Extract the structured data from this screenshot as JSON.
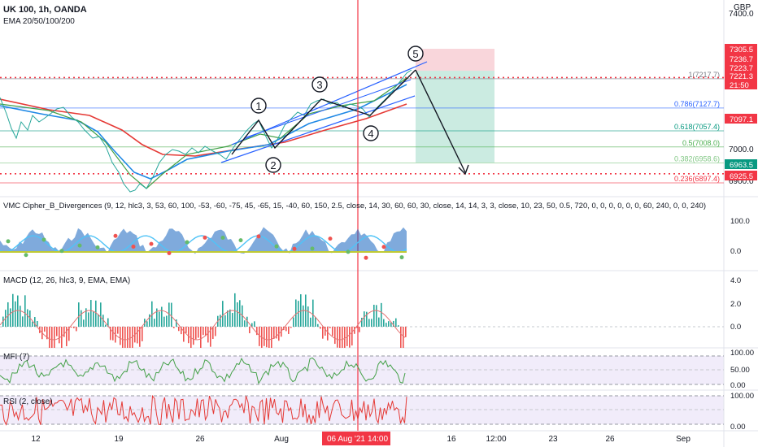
{
  "header": {
    "symbol_line": "UK 100, 1h, OANDA",
    "ema_line": "EMA 20/50/100/200",
    "currency": "GBP"
  },
  "indicators": {
    "vmc": "VMC Cipher_B_Divergences (9, 12, hlc3, 3, 53, 60, 100, -53, -60, -75, 45, -65, 15, -40, 60, 150, 2.5, close, 14, 30, 60, 60, 30, close, 14, 14, 3, 3, close, 10, 23, 50, 0.5, 720, 0, 0, 0, 0, 0, 0, 60, 240, 0, 0, 240)",
    "macd": "MACD (12, 26, hlc3, 9, EMA, EMA)",
    "mfi": "MFI (7)",
    "rsi": "RSI (2, close)"
  },
  "price_axis": {
    "ticks": [
      "7400.0",
      "7000.0",
      "6900.0"
    ]
  },
  "price_tags": [
    {
      "label": "7305.5",
      "color": "#f23645",
      "price": 7305.5
    },
    {
      "label": "7236.7",
      "color": "#f23645",
      "price": 7236.7
    },
    {
      "label": "7223.7",
      "color": "#f23645",
      "price": 7223.7
    },
    {
      "label": "7221.3",
      "color": "#f23645",
      "price": 7221.3
    },
    {
      "label": "21:50",
      "color": "#f23645",
      "price": 7200
    },
    {
      "label": "7097.1",
      "color": "#f23645",
      "price": 7097.1
    },
    {
      "label": "6963.5",
      "color": "#089981",
      "price": 6963.5
    },
    {
      "label": "6925.5",
      "color": "#f23645",
      "price": 6925.5
    }
  ],
  "fib_levels": [
    {
      "label": "1(7217.7)",
      "price": 7217.7,
      "color": "#787b86"
    },
    {
      "label": "0.786(7127.7)",
      "price": 7127.7,
      "color": "#2962ff"
    },
    {
      "label": "0.618(7057.4)",
      "price": 7057.4,
      "color": "#089981"
    },
    {
      "label": "0.5(7008.0)",
      "price": 7008.0,
      "color": "#4caf50"
    },
    {
      "label": "0.382(6958.6)",
      "price": 6958.6,
      "color": "#81c784"
    },
    {
      "label": "0.236(6897.4)",
      "price": 6897.4,
      "color": "#f23645"
    }
  ],
  "waves": [
    "1",
    "2",
    "3",
    "4",
    "5"
  ],
  "macd_axis": [
    "4.0",
    "2.0",
    "0.0"
  ],
  "vmc_axis": [
    "100.0",
    "0.0"
  ],
  "mfi_axis": [
    "100.00",
    "50.00",
    "0.00"
  ],
  "rsi_axis": [
    "100.00",
    "0.00"
  ],
  "time_axis": [
    "12",
    "19",
    "26",
    "Aug",
    "16",
    "12:00",
    "23",
    "26",
    "Sep"
  ],
  "crosshair_date": "06 Aug '21",
  "crosshair_time": "14:00",
  "colors": {
    "up": "#089981",
    "down": "#f23645",
    "channel": "#2962ff",
    "ema_blue": "#2196f3",
    "ema_red": "#f23645"
  }
}
